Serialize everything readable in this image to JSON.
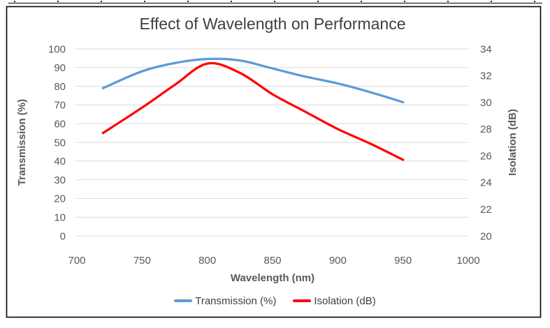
{
  "chart": {
    "frame": {
      "border_color": "#000000",
      "background": "#FFFFFF",
      "sheet_gridline_color": "#262626"
    }
  },
  "chart_data": {
    "type": "line",
    "title": "Effect of Wavelength on Performance",
    "xlabel": "Wavelength (nm)",
    "ylabel_left": "Transmission (%)",
    "ylabel_right": "Isolation (dB)",
    "x": [
      720,
      750,
      775,
      800,
      825,
      850,
      875,
      900,
      925,
      950
    ],
    "series": [
      {
        "name": "Transmission (%)",
        "axis": "left",
        "color": "#5B9BD5",
        "values": [
          79,
          88,
          92.4,
          94.6,
          93.8,
          89.5,
          85.2,
          81.5,
          76.8,
          71.5
        ]
      },
      {
        "name": "Isolation (dB)",
        "axis": "right",
        "color": "#FF0000",
        "values": [
          27.7,
          29.6,
          31.3,
          32.9,
          32.2,
          30.6,
          29.3,
          28.0,
          26.9,
          25.7
        ]
      }
    ],
    "xlim": [
      700,
      1000
    ],
    "ylim_left": [
      0,
      100
    ],
    "ylim_right": [
      20,
      34
    ],
    "x_ticks": [
      700,
      750,
      800,
      850,
      900,
      950,
      1000
    ],
    "y_left_ticks": [
      0,
      10,
      20,
      30,
      40,
      50,
      60,
      70,
      80,
      90,
      100
    ],
    "y_right_ticks": [
      20,
      22,
      24,
      26,
      28,
      30,
      32,
      34
    ],
    "grid": true,
    "legend_position": "bottom",
    "colors": {
      "gridline": "#D9D9D9",
      "tick_label": "#595959",
      "title": "#404040",
      "axis_title": "#595959",
      "legend_text": "#404040"
    }
  }
}
